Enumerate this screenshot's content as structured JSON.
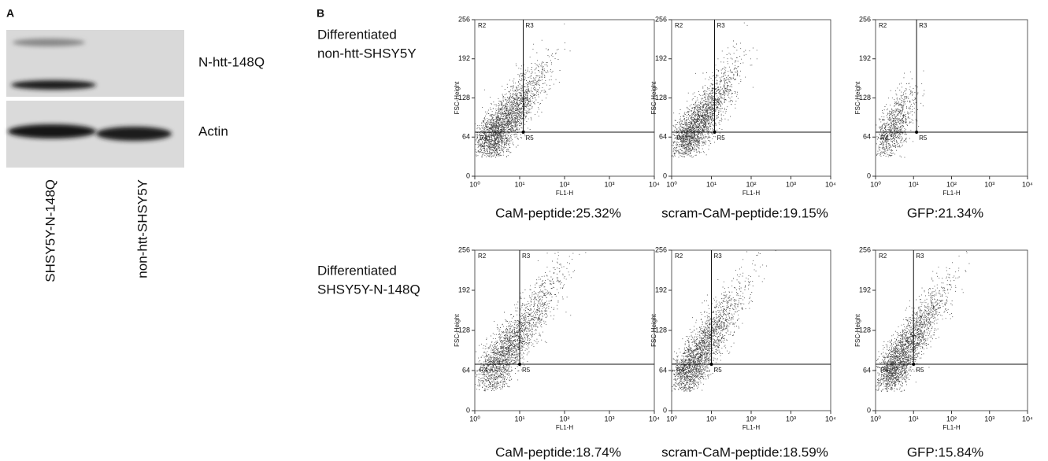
{
  "panel_a": {
    "label": "A",
    "bands": [
      "N-htt-148Q",
      "Actin"
    ],
    "lanes": [
      "SHSY5Y-N-148Q",
      "non-htt-SHSY5Y"
    ]
  },
  "panel_b": {
    "label": "B",
    "x_label": "FL1-H",
    "y_label": "FSC-Height",
    "xscale": "log",
    "xlim": [
      1,
      10000
    ],
    "xticks": [
      {
        "value": 1,
        "label": "10⁰"
      },
      {
        "value": 10,
        "label": "10¹"
      },
      {
        "value": 100,
        "label": "10²"
      },
      {
        "value": 1000,
        "label": "10³"
      },
      {
        "value": 10000,
        "label": "10⁴"
      }
    ],
    "ylim": [
      0,
      256
    ],
    "yticks": [
      0,
      64,
      128,
      192,
      256
    ],
    "regions": [
      "R2",
      "R3",
      "R4",
      "R5"
    ],
    "rows": [
      {
        "label": [
          "Differentiated",
          "non-htt-SHSY5Y"
        ],
        "plots": [
          {
            "caption": "CaM-peptide:25.32%",
            "gate": {
              "x": 12,
              "y": 72
            }
          },
          {
            "caption": "scram-CaM-peptide:19.15%",
            "gate": {
              "x": 12,
              "y": 72
            }
          },
          {
            "caption": "GFP:21.34%",
            "gate": {
              "x": 12,
              "y": 72
            }
          }
        ]
      },
      {
        "label": [
          "Differentiated",
          "SHSY5Y-N-148Q"
        ],
        "plots": [
          {
            "caption": "CaM-peptide:18.74%",
            "gate": {
              "x": 10,
              "y": 74
            }
          },
          {
            "caption": "scram-CaM-peptide:18.59%",
            "gate": {
              "x": 10,
              "y": 74
            }
          },
          {
            "caption": "GFP:15.84%",
            "gate": {
              "x": 10,
              "y": 74
            }
          }
        ]
      }
    ]
  }
}
